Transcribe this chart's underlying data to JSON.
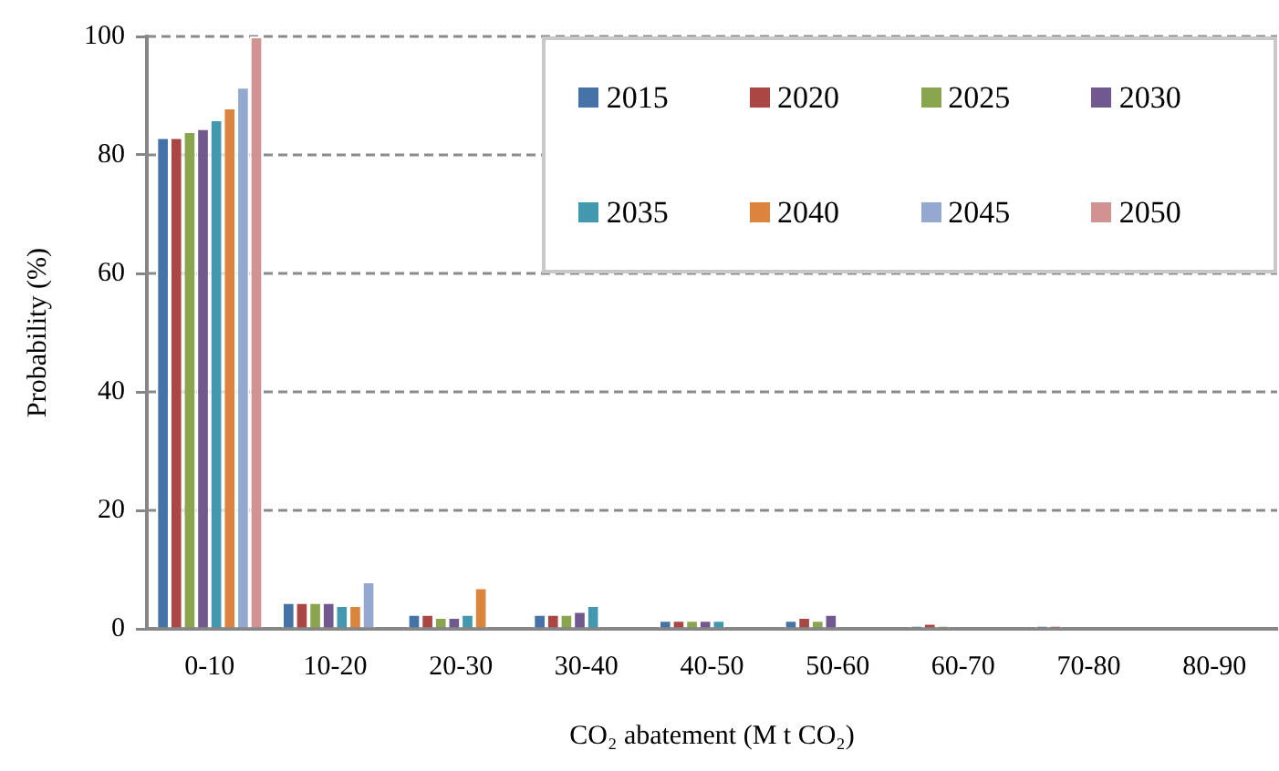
{
  "chart_data": {
    "type": "bar",
    "xlabel": "CO₂ abatement (M t CO₂)",
    "ylabel": "Probability (%)",
    "categories": [
      "0-10",
      "10-20",
      "20-30",
      "30-40",
      "40-50",
      "50-60",
      "60-70",
      "70-80",
      "80-90"
    ],
    "series": [
      {
        "name": "2015",
        "color": "#4572a7",
        "values": [
          83,
          4.5,
          2.5,
          2.5,
          1.5,
          1.5,
          0.5,
          0.5,
          0
        ]
      },
      {
        "name": "2020",
        "color": "#aa4643",
        "values": [
          83,
          4.5,
          2.5,
          2.5,
          1.5,
          2,
          1,
          0.5,
          0
        ]
      },
      {
        "name": "2025",
        "color": "#89a54e",
        "values": [
          84,
          4.5,
          2,
          2.5,
          1.5,
          1.5,
          0.5,
          0,
          0
        ]
      },
      {
        "name": "2030",
        "color": "#71588f",
        "values": [
          84.5,
          4.5,
          2,
          3,
          1.5,
          2.5,
          0,
          0,
          0
        ]
      },
      {
        "name": "2035",
        "color": "#4198af",
        "values": [
          86,
          4,
          2.5,
          4,
          1.5,
          0,
          0,
          0,
          0
        ]
      },
      {
        "name": "2040",
        "color": "#db843d",
        "values": [
          88,
          4,
          7,
          0,
          0,
          0,
          0,
          0,
          0
        ]
      },
      {
        "name": "2045",
        "color": "#93a9cf",
        "values": [
          91.5,
          8,
          0,
          0,
          0,
          0,
          0,
          0,
          0
        ]
      },
      {
        "name": "2050",
        "color": "#d19392",
        "values": [
          100,
          0,
          0,
          0,
          0,
          0,
          0,
          0,
          0
        ]
      }
    ],
    "ylim": [
      0,
      100
    ],
    "yticks": [
      0,
      20,
      40,
      60,
      80,
      100
    ],
    "grid": "y",
    "legend": "top right"
  }
}
